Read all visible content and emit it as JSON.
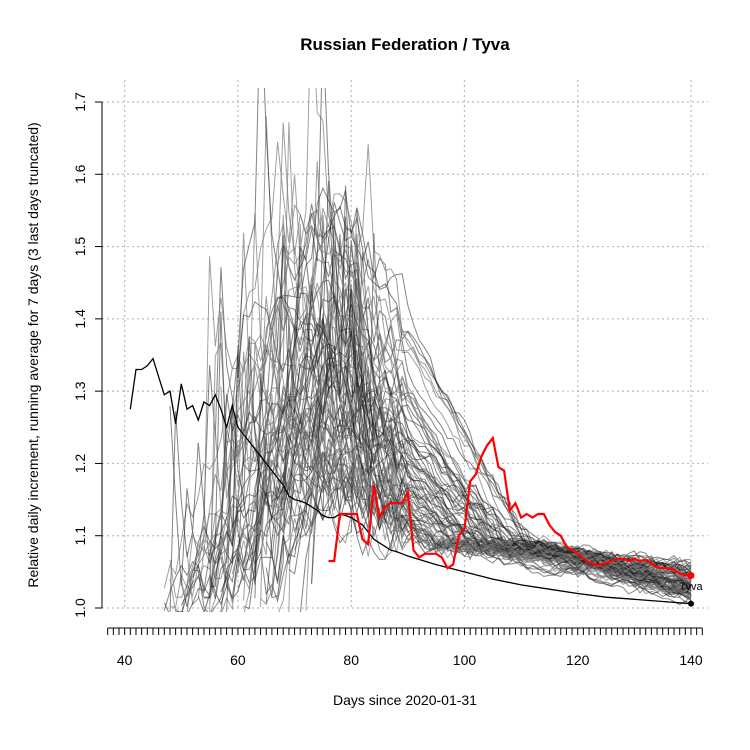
{
  "chart_data": {
    "type": "line",
    "title": "Russian Federation / Tyva",
    "xlabel": "Days since 2020-01-31",
    "ylabel": "Relative daily increment, running average for 7 days (3 last days truncated)",
    "xlim": [
      36,
      143
    ],
    "ylim": [
      1.0,
      1.7
    ],
    "x_ticks": [
      40,
      60,
      80,
      100,
      120,
      140
    ],
    "y_ticks": [
      1.0,
      1.1,
      1.2,
      1.3,
      1.4,
      1.5,
      1.6,
      1.7
    ],
    "grid": true,
    "colors": {
      "highlight": "#ff0000",
      "national": "#000000",
      "regions": "#808080"
    },
    "end_label": "Tyva",
    "highlight_series": {
      "name": "Tyva",
      "x": [
        76,
        77,
        78,
        79,
        80,
        81,
        82,
        83,
        84,
        85,
        86,
        87,
        88,
        89,
        90,
        91,
        92,
        93,
        94,
        95,
        96,
        97,
        98,
        99,
        100,
        101,
        102,
        103,
        104,
        105,
        106,
        107,
        108,
        109,
        110,
        111,
        112,
        113,
        114,
        115,
        116,
        117,
        118,
        119,
        120,
        121,
        122,
        123,
        124,
        125,
        126,
        127,
        128,
        129,
        130,
        131,
        132,
        133,
        134,
        135,
        136,
        137,
        138,
        139,
        140
      ],
      "y": [
        1.065,
        1.065,
        1.13,
        1.13,
        1.13,
        1.13,
        1.095,
        1.088,
        1.17,
        1.125,
        1.14,
        1.145,
        1.145,
        1.145,
        1.16,
        1.08,
        1.07,
        1.075,
        1.075,
        1.075,
        1.07,
        1.055,
        1.06,
        1.1,
        1.11,
        1.175,
        1.185,
        1.21,
        1.225,
        1.235,
        1.195,
        1.19,
        1.135,
        1.145,
        1.125,
        1.13,
        1.125,
        1.13,
        1.13,
        1.115,
        1.105,
        1.1,
        1.085,
        1.08,
        1.075,
        1.068,
        1.063,
        1.06,
        1.06,
        1.062,
        1.065,
        1.068,
        1.068,
        1.065,
        1.068,
        1.065,
        1.067,
        1.062,
        1.056,
        1.055,
        1.055,
        1.053,
        1.048,
        1.045,
        1.045
      ]
    },
    "national_series": {
      "x": [
        41,
        42,
        43,
        44,
        45,
        46,
        47,
        48,
        49,
        50,
        51,
        52,
        53,
        54,
        55,
        56,
        57,
        58,
        59,
        60,
        61,
        62,
        63,
        64,
        65,
        66,
        67,
        68,
        69,
        70,
        71,
        72,
        73,
        74,
        75,
        76,
        77,
        78,
        79,
        80,
        81,
        82,
        83,
        84,
        85,
        86,
        87,
        88,
        89,
        90,
        95,
        100,
        105,
        110,
        115,
        120,
        125,
        130,
        135,
        140
      ],
      "y": [
        1.275,
        1.33,
        1.33,
        1.335,
        1.345,
        1.32,
        1.295,
        1.3,
        1.255,
        1.31,
        1.275,
        1.28,
        1.26,
        1.285,
        1.28,
        1.295,
        1.275,
        1.25,
        1.28,
        1.25,
        1.24,
        1.23,
        1.22,
        1.21,
        1.2,
        1.19,
        1.18,
        1.17,
        1.155,
        1.15,
        1.148,
        1.145,
        1.14,
        1.135,
        1.128,
        1.125,
        1.125,
        1.13,
        1.128,
        1.125,
        1.12,
        1.115,
        1.105,
        1.095,
        1.09,
        1.085,
        1.08,
        1.078,
        1.075,
        1.072,
        1.06,
        1.05,
        1.04,
        1.032,
        1.026,
        1.02,
        1.015,
        1.012,
        1.009,
        1.006
      ]
    }
  }
}
